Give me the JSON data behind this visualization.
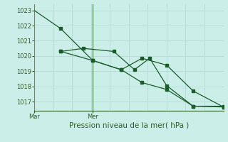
{
  "xlabel": "Pression niveau de la mer( hPa )",
  "bg_color": "#cceee8",
  "grid_color": "#b8ddd8",
  "line_color": "#1a5c2a",
  "vline_color": "#3a7a3a",
  "xtick_labels": [
    "Mar",
    "Mer"
  ],
  "xtick_positions": [
    0.0,
    0.31
  ],
  "ylim": [
    1016.4,
    1023.4
  ],
  "yticks": [
    1017,
    1018,
    1019,
    1020,
    1021,
    1022,
    1023
  ],
  "xlim": [
    0.0,
    1.0
  ],
  "x_line1": [
    0.0,
    0.14,
    0.31,
    0.46,
    0.57,
    0.7,
    0.84,
    1.0
  ],
  "y_line1": [
    1023.0,
    1021.8,
    1019.7,
    1019.1,
    1018.25,
    1017.8,
    1016.7,
    1016.65
  ],
  "x_line2": [
    0.14,
    0.31,
    0.46,
    0.57,
    0.7,
    0.84,
    1.0
  ],
  "y_line2": [
    1020.3,
    1019.7,
    1019.1,
    1019.85,
    1019.4,
    1017.7,
    1016.65
  ],
  "x_line3": [
    0.14,
    0.26,
    0.42,
    0.53,
    0.61,
    0.7,
    0.84,
    1.0
  ],
  "y_line3": [
    1020.3,
    1020.5,
    1020.3,
    1019.1,
    1019.85,
    1018.05,
    1016.7,
    1016.7
  ],
  "vline_positions": [
    0.0,
    0.31
  ],
  "marker_size": 2.5,
  "tick_fontsize": 6.0,
  "xlabel_fontsize": 7.5
}
